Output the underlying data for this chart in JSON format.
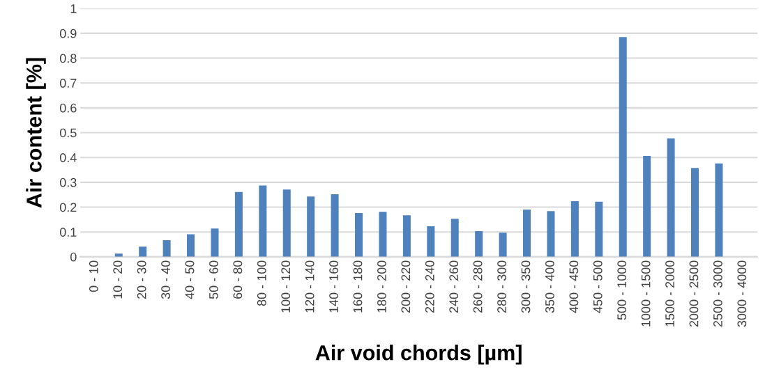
{
  "chart_data": {
    "type": "bar",
    "xlabel": "Air void chords [µm]",
    "ylabel": "Air content [%]",
    "categories": [
      "0 - 10",
      "10 - 20",
      "20 - 30",
      "30 - 40",
      "40 - 50",
      "50 - 60",
      "60 - 80",
      "80 - 100",
      "100 - 120",
      "120 - 140",
      "140 - 160",
      "160 - 180",
      "180 - 200",
      "200 - 220",
      "220 - 240",
      "240 - 260",
      "260 - 280",
      "280 - 300",
      "300 - 350",
      "350 - 400",
      "400 - 450",
      "450 - 500",
      "500 - 1000",
      "1000 - 1500",
      "1500 - 2000",
      "2000 - 2500",
      "2500 - 3000",
      "3000 - 4000"
    ],
    "values": [
      0,
      0.013,
      0.041,
      0.067,
      0.091,
      0.114,
      0.261,
      0.287,
      0.271,
      0.243,
      0.252,
      0.176,
      0.181,
      0.167,
      0.123,
      0.153,
      0.103,
      0.097,
      0.19,
      0.184,
      0.224,
      0.222,
      0.885,
      0.406,
      0.477,
      0.358,
      0.376,
      0
    ],
    "color": "#4f81bd",
    "ylim": [
      0,
      1
    ],
    "yticks": [
      0,
      0.1,
      0.2,
      0.3,
      0.4,
      0.5,
      0.6,
      0.7,
      0.8,
      0.9,
      1
    ],
    "grid": "y"
  }
}
